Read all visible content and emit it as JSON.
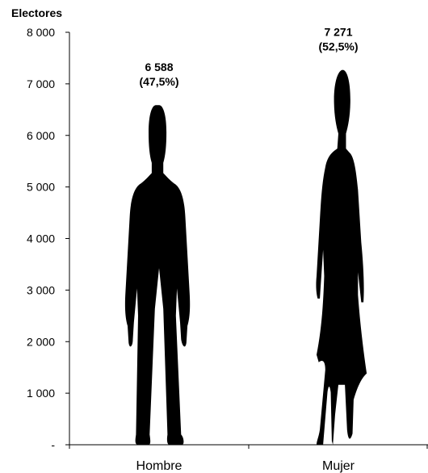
{
  "chart_data": {
    "type": "bar",
    "ylabel": "Electores",
    "categories": [
      "Hombre",
      "Mujer"
    ],
    "values": [
      6588,
      7271
    ],
    "ylim": [
      0,
      8000
    ],
    "yticks": [
      "-",
      "1 000",
      "2 000",
      "3 000",
      "4 000",
      "5 000",
      "6 000",
      "7 000",
      "8 000"
    ],
    "data_labels": [
      {
        "value": "6 588",
        "pct": "(47,5%)"
      },
      {
        "value": "7 271",
        "pct": "(52,5%)"
      }
    ],
    "marks": [
      "man-silhouette",
      "woman-silhouette"
    ],
    "bar_color": "#000000",
    "grid": false
  }
}
